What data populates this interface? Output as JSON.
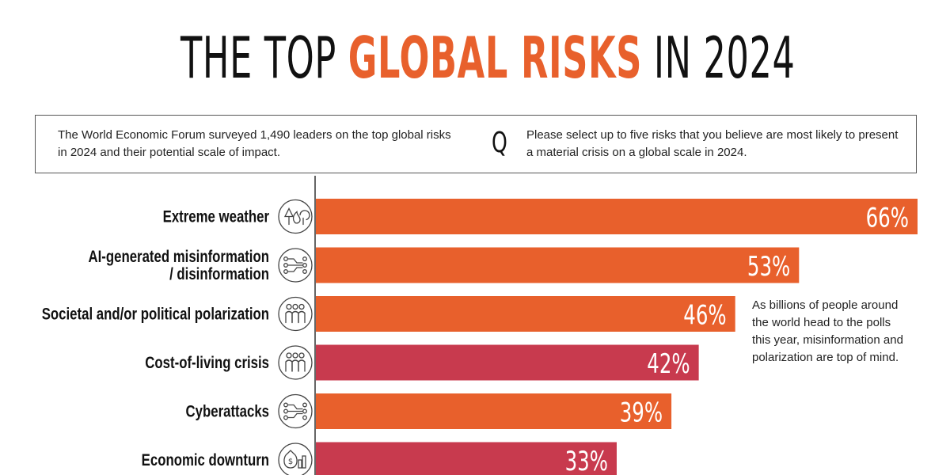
{
  "title": {
    "part1": "THE TOP ",
    "highlight": "GLOBAL RISKS",
    "part2": " IN 2024"
  },
  "intro": {
    "summary": "The World Economic Forum surveyed 1,490 leaders on the top global risks in 2024 and their potential scale of impact.",
    "q_label": "Q",
    "question": "Please select up to five risks that you believe are most likely to present a material crisis on a global scale in 2024."
  },
  "note": "As billions of people around the world head to the polls this year, misinformation and polarization are top of mind.",
  "colors": {
    "accent": "#E8602C",
    "bar_orange": "#E8602C",
    "bar_red": "#C83A4E",
    "text": "#111111",
    "axis": "#333333",
    "icon_stroke": "#444444"
  },
  "chart_data": {
    "type": "bar",
    "orientation": "horizontal",
    "value_suffix": "%",
    "xlim": [
      0,
      66
    ],
    "categories": [
      {
        "label": [
          "Extreme weather"
        ],
        "value": 66,
        "color": "#E8602C",
        "icon": "forest-fire-icon"
      },
      {
        "label": [
          "AI-generated misinformation",
          "/ disinformation"
        ],
        "value": 53,
        "color": "#E8602C",
        "icon": "circuit-icon"
      },
      {
        "label": [
          "Societal and/or political polarization"
        ],
        "value": 46,
        "color": "#E8602C",
        "icon": "people-group-icon"
      },
      {
        "label": [
          "Cost-of-living crisis"
        ],
        "value": 42,
        "color": "#C83A4E",
        "icon": "people-group-icon"
      },
      {
        "label": [
          "Cyberattacks"
        ],
        "value": 39,
        "color": "#E8602C",
        "icon": "circuit-icon"
      },
      {
        "label": [
          "Economic downturn"
        ],
        "value": 33,
        "color": "#C83A4E",
        "icon": "money-bag-chart-icon"
      }
    ]
  }
}
